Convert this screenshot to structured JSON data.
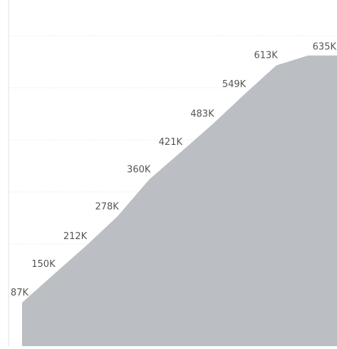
{
  "chart_data": {
    "type": "area",
    "title": "",
    "xlabel": "",
    "ylabel": "",
    "grid": true,
    "series": [
      {
        "values": [
          87000,
          150000,
          212000,
          278000,
          360000,
          421000,
          483000,
          549000,
          613000,
          635000
        ],
        "labels": [
          "87K",
          "150K",
          "212K",
          "278K",
          "360K",
          "421K",
          "483K",
          "549K",
          "613K",
          "635K"
        ]
      }
    ],
    "colors": {
      "area_fill": "#bbbec3",
      "grid": "#ebebeb",
      "axis": "#e2e2e2",
      "label_text": "#555555"
    }
  }
}
